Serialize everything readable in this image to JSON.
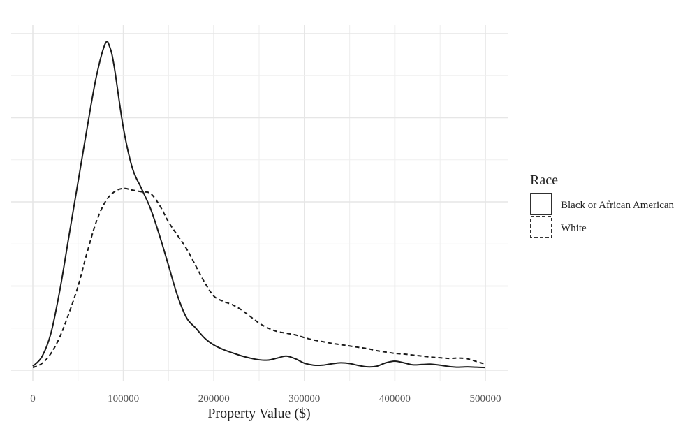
{
  "chart_data": {
    "type": "line",
    "title": "",
    "xlabel": "Property Value ($)",
    "ylabel": "",
    "xlim": [
      0,
      500000
    ],
    "xticks": [
      0,
      100000,
      200000,
      300000,
      400000,
      500000
    ],
    "x_tick_labels": [
      "0",
      "100000",
      "200000",
      "300000",
      "400000",
      "500000"
    ],
    "y_tick_labels_shown": false,
    "grid": true,
    "legend": {
      "title": "Race",
      "position": "right",
      "entries": [
        {
          "label": "Black or African American",
          "line_style": "solid"
        },
        {
          "label": "White",
          "line_style": "dashed"
        }
      ]
    },
    "series": [
      {
        "name": "Black or African American",
        "line_style": "solid",
        "color": "#1a1a1a",
        "points": [
          [
            0,
            0.012
          ],
          [
            10000,
            0.04
          ],
          [
            20000,
            0.11
          ],
          [
            30000,
            0.24
          ],
          [
            40000,
            0.4
          ],
          [
            50000,
            0.56
          ],
          [
            60000,
            0.72
          ],
          [
            70000,
            0.87
          ],
          [
            80000,
            0.97
          ],
          [
            85000,
            0.96
          ],
          [
            90000,
            0.9
          ],
          [
            100000,
            0.72
          ],
          [
            110000,
            0.6
          ],
          [
            120000,
            0.54
          ],
          [
            130000,
            0.48
          ],
          [
            140000,
            0.4
          ],
          [
            150000,
            0.31
          ],
          [
            160000,
            0.22
          ],
          [
            170000,
            0.155
          ],
          [
            180000,
            0.125
          ],
          [
            190000,
            0.095
          ],
          [
            200000,
            0.075
          ],
          [
            210000,
            0.062
          ],
          [
            220000,
            0.052
          ],
          [
            230000,
            0.043
          ],
          [
            240000,
            0.036
          ],
          [
            250000,
            0.031
          ],
          [
            260000,
            0.03
          ],
          [
            270000,
            0.036
          ],
          [
            280000,
            0.042
          ],
          [
            290000,
            0.034
          ],
          [
            300000,
            0.021
          ],
          [
            310000,
            0.015
          ],
          [
            320000,
            0.015
          ],
          [
            330000,
            0.019
          ],
          [
            340000,
            0.022
          ],
          [
            350000,
            0.02
          ],
          [
            360000,
            0.014
          ],
          [
            370000,
            0.01
          ],
          [
            380000,
            0.012
          ],
          [
            390000,
            0.022
          ],
          [
            400000,
            0.027
          ],
          [
            410000,
            0.022
          ],
          [
            420000,
            0.016
          ],
          [
            430000,
            0.017
          ],
          [
            440000,
            0.018
          ],
          [
            450000,
            0.015
          ],
          [
            460000,
            0.011
          ],
          [
            470000,
            0.009
          ],
          [
            480000,
            0.01
          ],
          [
            490000,
            0.009
          ],
          [
            500000,
            0.008
          ]
        ]
      },
      {
        "name": "White",
        "line_style": "dashed",
        "color": "#1a1a1a",
        "points": [
          [
            0,
            0.008
          ],
          [
            10000,
            0.02
          ],
          [
            20000,
            0.05
          ],
          [
            30000,
            0.1
          ],
          [
            40000,
            0.17
          ],
          [
            50000,
            0.25
          ],
          [
            60000,
            0.35
          ],
          [
            70000,
            0.44
          ],
          [
            80000,
            0.5
          ],
          [
            90000,
            0.53
          ],
          [
            100000,
            0.54
          ],
          [
            110000,
            0.535
          ],
          [
            120000,
            0.53
          ],
          [
            130000,
            0.525
          ],
          [
            140000,
            0.49
          ],
          [
            150000,
            0.44
          ],
          [
            160000,
            0.4
          ],
          [
            170000,
            0.36
          ],
          [
            180000,
            0.31
          ],
          [
            190000,
            0.26
          ],
          [
            200000,
            0.22
          ],
          [
            210000,
            0.205
          ],
          [
            220000,
            0.195
          ],
          [
            230000,
            0.18
          ],
          [
            240000,
            0.16
          ],
          [
            250000,
            0.14
          ],
          [
            260000,
            0.125
          ],
          [
            270000,
            0.115
          ],
          [
            280000,
            0.11
          ],
          [
            290000,
            0.105
          ],
          [
            300000,
            0.097
          ],
          [
            310000,
            0.09
          ],
          [
            320000,
            0.085
          ],
          [
            330000,
            0.08
          ],
          [
            340000,
            0.076
          ],
          [
            350000,
            0.072
          ],
          [
            360000,
            0.068
          ],
          [
            370000,
            0.064
          ],
          [
            380000,
            0.058
          ],
          [
            390000,
            0.054
          ],
          [
            400000,
            0.05
          ],
          [
            410000,
            0.048
          ],
          [
            420000,
            0.045
          ],
          [
            430000,
            0.042
          ],
          [
            440000,
            0.039
          ],
          [
            450000,
            0.037
          ],
          [
            460000,
            0.035
          ],
          [
            470000,
            0.036
          ],
          [
            480000,
            0.034
          ],
          [
            490000,
            0.026
          ],
          [
            500000,
            0.018
          ]
        ]
      }
    ]
  }
}
